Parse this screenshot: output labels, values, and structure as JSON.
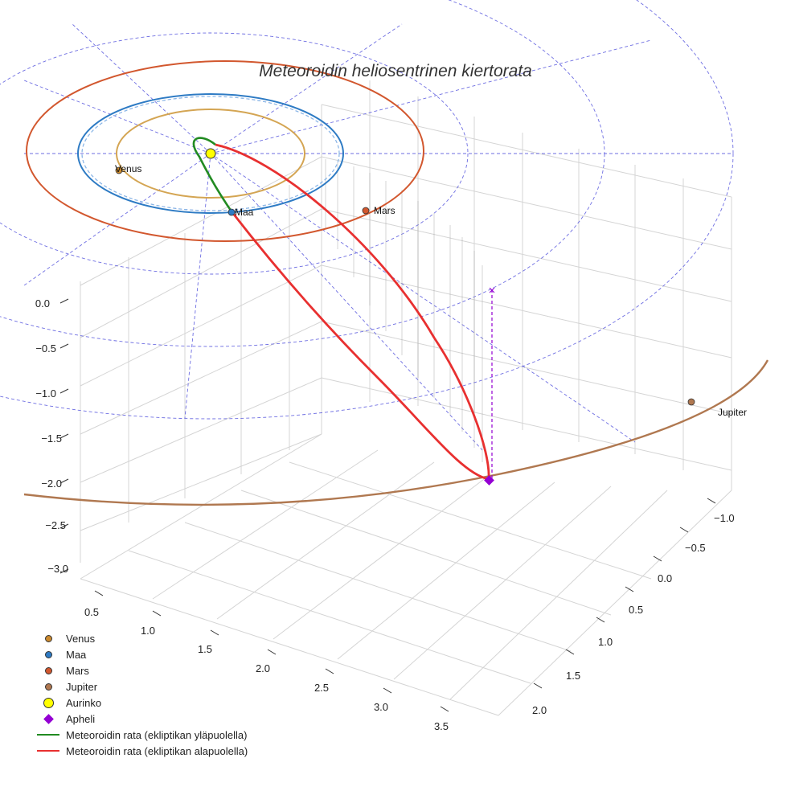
{
  "chart_data": {
    "type": "3d-orbit",
    "title": "Meteoroidin heliosentrinen kiertorata",
    "z_ticks": [
      "0.0",
      "−0.5",
      "−1.0",
      "−1.5",
      "−2.0",
      "−2.5",
      "−3.0"
    ],
    "x_ticks": [
      "0.5",
      "1.0",
      "1.5",
      "2.0",
      "2.5",
      "3.0",
      "3.5"
    ],
    "y_ticks": [
      "−1.0",
      "−0.5",
      "0.0",
      "0.5",
      "1.0",
      "1.5",
      "2.0"
    ],
    "planets": [
      {
        "name": "Venus",
        "label": "Venus",
        "color": "#cc8a2e"
      },
      {
        "name": "Maa",
        "label": "Maa",
        "color": "#2e7bc4"
      },
      {
        "name": "Mars",
        "label": "Mars",
        "color": "#d2572e"
      },
      {
        "name": "Jupiter",
        "label": "Jupiter",
        "color": "#b07850"
      }
    ],
    "legend": [
      {
        "label": "Venus",
        "symbol": "dot",
        "color": "#cc8a2e"
      },
      {
        "label": "Maa",
        "symbol": "dot",
        "color": "#2e7bc4"
      },
      {
        "label": "Mars",
        "symbol": "dot",
        "color": "#d2572e"
      },
      {
        "label": "Jupiter",
        "symbol": "dot",
        "color": "#b07850"
      },
      {
        "label": "Aurinko",
        "symbol": "bigdot",
        "color": "#ffff00"
      },
      {
        "label": "Apheli",
        "symbol": "diamond",
        "color": "#9400d3"
      },
      {
        "label": "Meteoroidin rata (ekliptikan yläpuolella)",
        "symbol": "line",
        "color": "#228b22"
      },
      {
        "label": "Meteoroidin rata (ekliptikan alapuolella)",
        "symbol": "line",
        "color": "#e83030"
      }
    ]
  },
  "colors": {
    "above": "#228b22",
    "below": "#e83030",
    "aphelion": "#9400d3",
    "sun": "#ffff00",
    "grid_dashed": "#5555dd",
    "axis_grid": "#d0d0d0"
  }
}
